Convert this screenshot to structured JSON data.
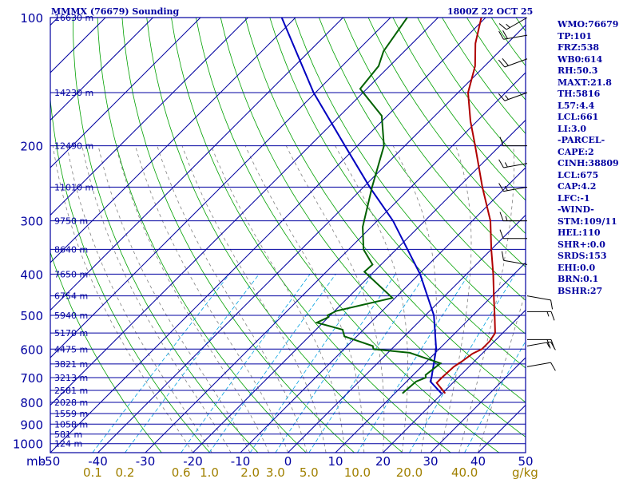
{
  "header": {
    "title": "MMMX (76679) Sounding",
    "datetime": "1800Z 22 OCT 25"
  },
  "stats": [
    "WMO:76679",
    "TP:101",
    "FRZ:538",
    "WB0:614",
    "RH:50.3",
    "MAXT:21.8",
    "TH:5816",
    "L57:4.4",
    "LCL:661",
    "LI:3.0",
    "-PARCEL-",
    "CAPE:2",
    "CINH:38809",
    "LCL:675",
    "CAP:4.2",
    "LFC:-1",
    "-WIND-",
    "STM:109/11",
    "HEL:110",
    "SHR+:0.0",
    "SRDS:153",
    "EHI:0.0",
    "BRN:0.1",
    "BSHR:27"
  ],
  "colors": {
    "isobar": "#0000a0",
    "isotherm": "#0000a0",
    "dry_adiabat": "#00a000",
    "moist_adiabat": "#808080",
    "mixing_ratio": "#00a0e0",
    "temperature": "#b00000",
    "dewpoint": "#006000",
    "parcel": "#0000c0",
    "axis_text": "#0000a0",
    "mixing_text": "#a08000"
  },
  "chart_data": {
    "type": "skew-t sounding",
    "title": "MMMX (76679) Sounding",
    "xlabel": "",
    "ylabel": "mb",
    "ylim": [
      1000,
      100
    ],
    "xlim": [
      -50,
      50
    ],
    "pressure_ticks": [
      "100",
      "200",
      "300",
      "400",
      "500",
      "600",
      "700",
      "800",
      "900",
      "1000"
    ],
    "pressure_label": "mb",
    "temp_ticks": [
      "-50",
      "-40",
      "-30",
      "-20",
      "-10",
      "0",
      "10",
      "20",
      "30",
      "40",
      "50"
    ],
    "mixing_unit": "g/kg",
    "mixing_ratio_ticks": [
      "0.1",
      "0.2",
      "0.6",
      "1.0",
      "2.0",
      "3.0",
      "5.0",
      "10.0",
      "20.0",
      "40.0"
    ],
    "height_labels": [
      {
        "p": 100,
        "label": "16630 m"
      },
      {
        "p": 150,
        "label": "14230 m"
      },
      {
        "p": 200,
        "label": "12490 m"
      },
      {
        "p": 250,
        "label": "11010 m"
      },
      {
        "p": 300,
        "label": "9750 m"
      },
      {
        "p": 350,
        "label": "8640 m"
      },
      {
        "p": 400,
        "label": "7650 m"
      },
      {
        "p": 450,
        "label": "6754 m"
      },
      {
        "p": 500,
        "label": "5940 m"
      },
      {
        "p": 550,
        "label": "5170 m"
      },
      {
        "p": 600,
        "label": "4475 m"
      },
      {
        "p": 650,
        "label": "3821 m"
      },
      {
        "p": 700,
        "label": "3213 m"
      },
      {
        "p": 750,
        "label": "2581 m"
      },
      {
        "p": 800,
        "label": "2028 m"
      },
      {
        "p": 850,
        "label": "1559 m"
      },
      {
        "p": 900,
        "label": "1058 m"
      },
      {
        "p": 950,
        "label": "581 m"
      },
      {
        "p": 1000,
        "label": "124 m"
      }
    ],
    "temperature": [
      [
        762,
        20.6
      ],
      [
        720,
        16.6
      ],
      [
        700,
        16.6
      ],
      [
        660,
        16.8
      ],
      [
        640,
        17.4
      ],
      [
        615,
        18.0
      ],
      [
        600,
        19.0
      ],
      [
        575,
        19.0
      ],
      [
        550,
        18.4
      ],
      [
        500,
        14.6
      ],
      [
        460,
        11.2
      ],
      [
        400,
        5.6
      ],
      [
        350,
        0.0
      ],
      [
        300,
        -6.2
      ],
      [
        250,
        -15.0
      ],
      [
        200,
        -25.2
      ],
      [
        175,
        -31.4
      ],
      [
        150,
        -37.9
      ],
      [
        130,
        -42.0
      ],
      [
        115,
        -46.7
      ],
      [
        100,
        -50.9
      ]
    ],
    "dewpoint": [
      [
        762,
        11.6
      ],
      [
        715,
        12.0
      ],
      [
        700,
        13.2
      ],
      [
        690,
        12.6
      ],
      [
        648,
        13.3
      ],
      [
        612,
        4.6
      ],
      [
        600,
        -3.8
      ],
      [
        590,
        -4.6
      ],
      [
        560,
        -12.6
      ],
      [
        540,
        -14.4
      ],
      [
        520,
        -21.3
      ],
      [
        505,
        -20.0
      ],
      [
        500,
        -20.6
      ],
      [
        488,
        -19.6
      ],
      [
        455,
        -10.6
      ],
      [
        395,
        -22.0
      ],
      [
        380,
        -21.8
      ],
      [
        350,
        -26.9
      ],
      [
        310,
        -31.8
      ],
      [
        250,
        -38.2
      ],
      [
        200,
        -44.4
      ],
      [
        170,
        -51.2
      ],
      [
        147,
        -61.4
      ],
      [
        130,
        -62.3
      ],
      [
        120,
        -64.4
      ],
      [
        100,
        -66.5
      ]
    ],
    "parcel": [
      [
        762,
        19.8
      ],
      [
        715,
        15.0
      ],
      [
        700,
        14.4
      ],
      [
        600,
        9.4
      ],
      [
        500,
        1.8
      ],
      [
        400,
        -9.8
      ],
      [
        300,
        -26.7
      ],
      [
        250,
        -38.7
      ],
      [
        200,
        -52.6
      ],
      [
        150,
        -70.4
      ],
      [
        100,
        -92.9
      ]
    ],
    "winds": [
      {
        "p": 660,
        "dir": 80,
        "spd": 10
      },
      {
        "p": 590,
        "dir": 80,
        "spd": 15
      },
      {
        "p": 570,
        "dir": 90,
        "spd": 20
      },
      {
        "p": 490,
        "dir": 90,
        "spd": 15
      },
      {
        "p": 450,
        "dir": 100,
        "spd": 10
      },
      {
        "p": 380,
        "dir": 280,
        "spd": 10
      },
      {
        "p": 330,
        "dir": 270,
        "spd": 10
      },
      {
        "p": 300,
        "dir": 270,
        "spd": 15
      },
      {
        "p": 250,
        "dir": 260,
        "spd": 15
      },
      {
        "p": 220,
        "dir": 260,
        "spd": 15
      },
      {
        "p": 200,
        "dir": 270,
        "spd": 10
      },
      {
        "p": 150,
        "dir": 250,
        "spd": 15
      },
      {
        "p": 125,
        "dir": 250,
        "spd": 20
      },
      {
        "p": 110,
        "dir": 260,
        "spd": 20
      },
      {
        "p": 100,
        "dir": 240,
        "spd": 15
      }
    ]
  }
}
